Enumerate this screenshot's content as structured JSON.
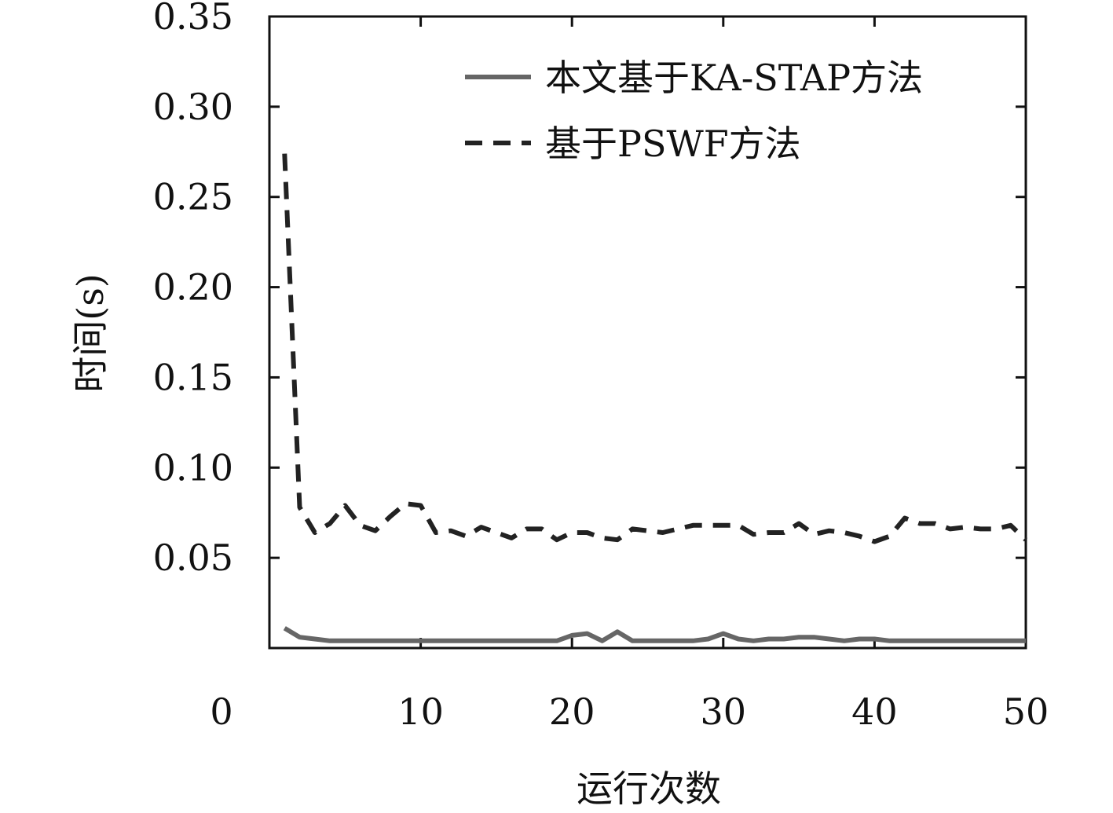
{
  "chart_data": {
    "type": "line",
    "xlabel": "运行次数",
    "ylabel": "时间(s)",
    "xlim": [
      0,
      50
    ],
    "ylim": [
      0,
      0.35
    ],
    "xticks": [
      0,
      10,
      20,
      30,
      40,
      50
    ],
    "xtick_labels": [
      "0",
      "10",
      "20",
      "30",
      "40",
      "50"
    ],
    "yticks": [
      0.05,
      0.1,
      0.15,
      0.2,
      0.25,
      0.3,
      0.35
    ],
    "ytick_labels": [
      "0.05",
      "0.10",
      "0.15",
      "0.20",
      "0.25",
      "0.30",
      "0.35"
    ],
    "grid": false,
    "legend_position": "top-right",
    "x": [
      1,
      2,
      3,
      4,
      5,
      6,
      7,
      8,
      9,
      10,
      11,
      12,
      13,
      14,
      15,
      16,
      17,
      18,
      19,
      20,
      21,
      22,
      23,
      24,
      25,
      26,
      27,
      28,
      29,
      30,
      31,
      32,
      33,
      34,
      35,
      36,
      37,
      38,
      39,
      40,
      41,
      42,
      43,
      44,
      45,
      46,
      47,
      48,
      49,
      50
    ],
    "series": [
      {
        "name": "本文基于KA-STAP方法",
        "color": "#666666",
        "style": "solid",
        "values": [
          0.011,
          0.006,
          0.005,
          0.004,
          0.004,
          0.004,
          0.004,
          0.004,
          0.004,
          0.004,
          0.004,
          0.004,
          0.004,
          0.004,
          0.004,
          0.004,
          0.004,
          0.004,
          0.004,
          0.007,
          0.008,
          0.004,
          0.009,
          0.004,
          0.004,
          0.004,
          0.004,
          0.004,
          0.005,
          0.008,
          0.005,
          0.004,
          0.005,
          0.005,
          0.006,
          0.006,
          0.005,
          0.004,
          0.005,
          0.005,
          0.004,
          0.004,
          0.004,
          0.004,
          0.004,
          0.004,
          0.004,
          0.004,
          0.004,
          0.004
        ]
      },
      {
        "name": "基于PSWF方法",
        "color": "#222222",
        "style": "dashed",
        "values": [
          0.274,
          0.078,
          0.064,
          0.069,
          0.079,
          0.068,
          0.065,
          0.073,
          0.08,
          0.079,
          0.064,
          0.065,
          0.062,
          0.067,
          0.064,
          0.061,
          0.066,
          0.066,
          0.06,
          0.064,
          0.064,
          0.061,
          0.06,
          0.066,
          0.065,
          0.064,
          0.066,
          0.068,
          0.068,
          0.068,
          0.068,
          0.063,
          0.064,
          0.064,
          0.069,
          0.063,
          0.065,
          0.064,
          0.062,
          0.059,
          0.062,
          0.072,
          0.069,
          0.069,
          0.066,
          0.067,
          0.066,
          0.066,
          0.068,
          0.06
        ]
      }
    ]
  }
}
